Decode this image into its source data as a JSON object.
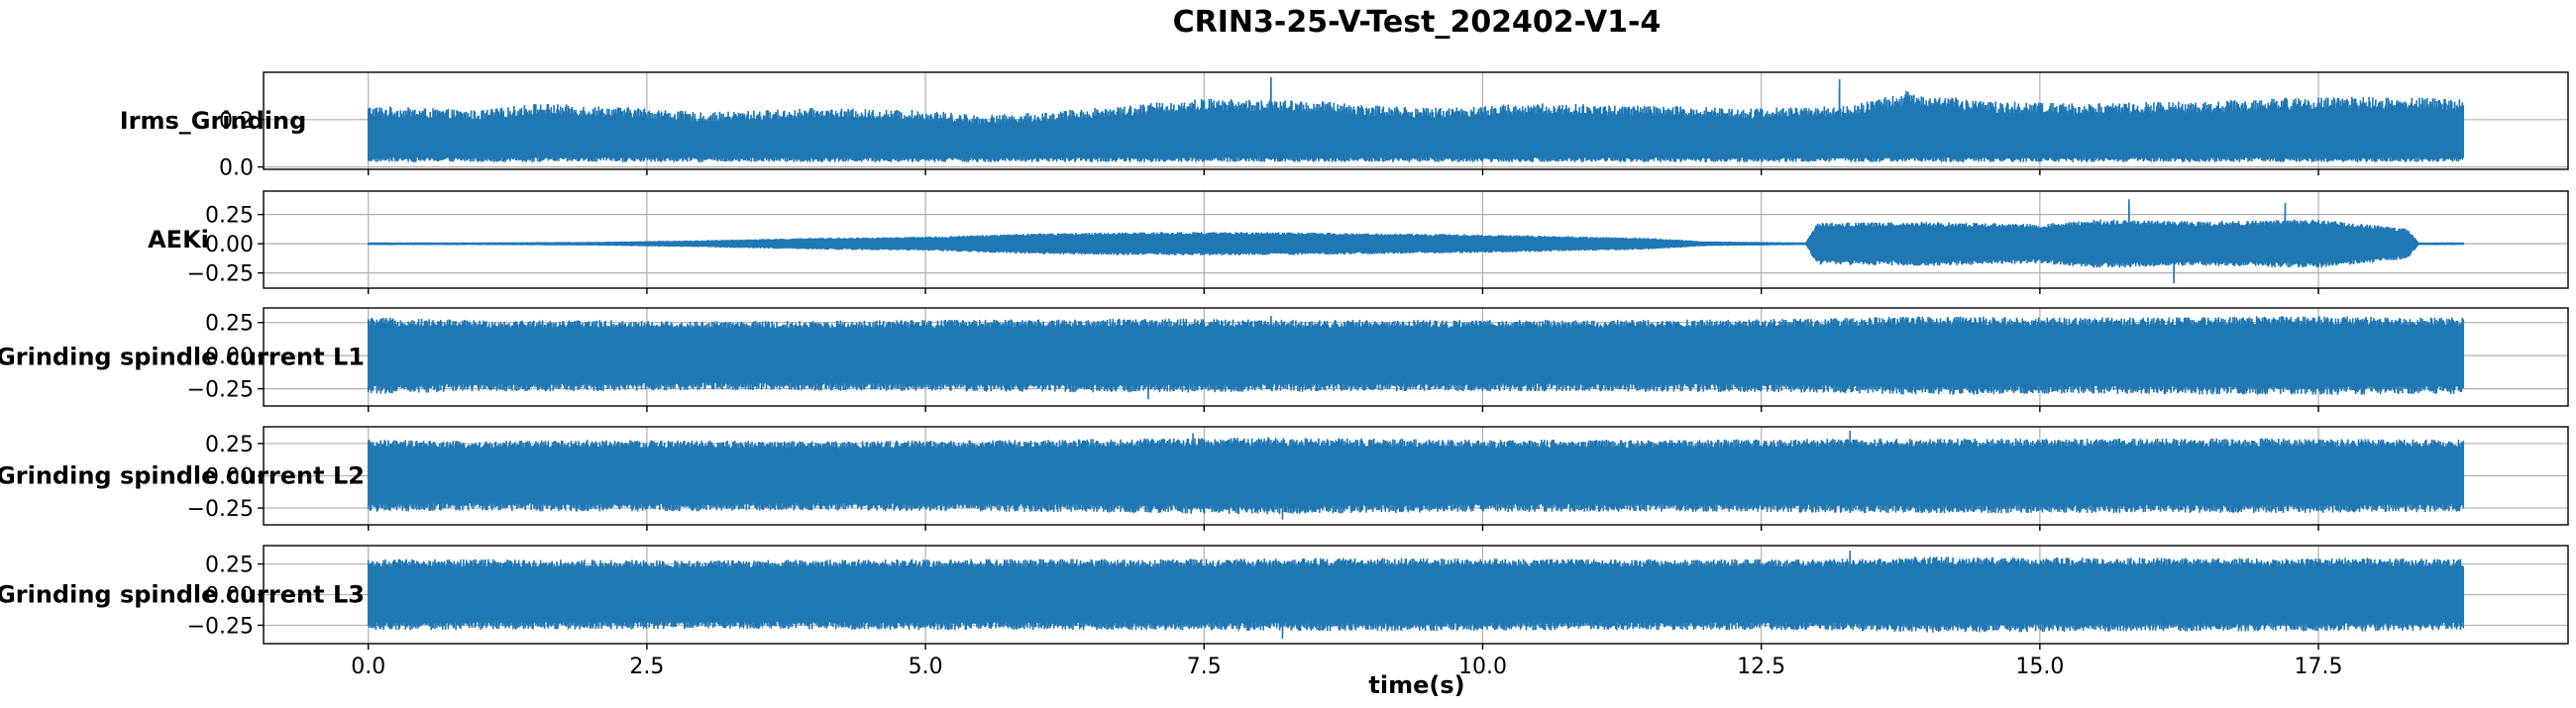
{
  "chart_data": {
    "title": "CRIN3-25-V-Test_202402-V1-4",
    "type": "line",
    "xlabel": "time(s)",
    "xlim": [
      -0.94,
      19.74
    ],
    "x_ticks": [
      "0.0",
      "2.5",
      "5.0",
      "7.5",
      "10.0",
      "12.5",
      "15.0",
      "17.5"
    ],
    "x_tick_values": [
      0,
      2.5,
      5,
      7.5,
      10,
      12.5,
      15,
      17.5
    ],
    "duration": 18.8,
    "color": "#1f77b4",
    "grid": true,
    "subplots": [
      {
        "ylabel": "Irms_Grinding",
        "ylim": [
          -0.01,
          0.4
        ],
        "y_ticks": [
          "0.0",
          "0.2"
        ],
        "y_tick_values": [
          0,
          0.2
        ],
        "signal": "rectified",
        "envelope": [
          [
            0,
            0.26
          ],
          [
            1,
            0.24
          ],
          [
            1.5,
            0.27
          ],
          [
            2.5,
            0.25
          ],
          [
            3,
            0.23
          ],
          [
            4,
            0.25
          ],
          [
            5,
            0.24
          ],
          [
            5.5,
            0.22
          ],
          [
            6,
            0.23
          ],
          [
            7,
            0.27
          ],
          [
            7.5,
            0.29
          ],
          [
            8.5,
            0.28
          ],
          [
            9.5,
            0.25
          ],
          [
            10.5,
            0.27
          ],
          [
            11.5,
            0.26
          ],
          [
            12.5,
            0.25
          ],
          [
            13.3,
            0.26
          ],
          [
            13.8,
            0.32
          ],
          [
            14.5,
            0.28
          ],
          [
            15.5,
            0.27
          ],
          [
            16.5,
            0.28
          ],
          [
            17.5,
            0.3
          ],
          [
            18.8,
            0.29
          ]
        ],
        "spikes": [
          [
            8.1,
            0.38
          ],
          [
            13.2,
            0.37
          ]
        ]
      },
      {
        "ylabel": "AEKi",
        "ylim": [
          -0.38,
          0.45
        ],
        "y_ticks": [
          "0.25",
          "0.00",
          "−0.25"
        ],
        "y_tick_values": [
          0.25,
          0,
          -0.25
        ],
        "signal": "symmetric",
        "envelope": [
          [
            0,
            0.01
          ],
          [
            1,
            0.01
          ],
          [
            2,
            0.015
          ],
          [
            3,
            0.03
          ],
          [
            4,
            0.05
          ],
          [
            5,
            0.06
          ],
          [
            6,
            0.09
          ],
          [
            7,
            0.1
          ],
          [
            8,
            0.1
          ],
          [
            9,
            0.09
          ],
          [
            10,
            0.08
          ],
          [
            11.5,
            0.05
          ],
          [
            12,
            0.02
          ],
          [
            12.9,
            0.01
          ],
          [
            13.0,
            0.18
          ],
          [
            14,
            0.19
          ],
          [
            15,
            0.17
          ],
          [
            15.5,
            0.21
          ],
          [
            16.5,
            0.19
          ],
          [
            17.5,
            0.21
          ],
          [
            18.3,
            0.13
          ],
          [
            18.4,
            0.01
          ],
          [
            18.8,
            0.01
          ]
        ],
        "spikes": [
          [
            15.8,
            0.38
          ],
          [
            17.2,
            0.35
          ],
          [
            16.2,
            -0.34
          ]
        ]
      },
      {
        "ylabel": "Grinding spindle current L1",
        "ylim": [
          -0.38,
          0.36
        ],
        "y_ticks": [
          "0.25",
          "0.00",
          "−0.25"
        ],
        "y_tick_values": [
          0.25,
          0,
          -0.25
        ],
        "signal": "symmetric",
        "envelope": [
          [
            0,
            0.29
          ],
          [
            1,
            0.27
          ],
          [
            2,
            0.27
          ],
          [
            3,
            0.26
          ],
          [
            5,
            0.27
          ],
          [
            7,
            0.28
          ],
          [
            9,
            0.27
          ],
          [
            11,
            0.27
          ],
          [
            13,
            0.28
          ],
          [
            14,
            0.3
          ],
          [
            15,
            0.29
          ],
          [
            16,
            0.29
          ],
          [
            17,
            0.3
          ],
          [
            18.8,
            0.29
          ]
        ],
        "spikes": [
          [
            8.1,
            0.3
          ],
          [
            7.0,
            -0.33
          ]
        ]
      },
      {
        "ylabel": "Grinding spindle current L2",
        "ylim": [
          -0.38,
          0.38
        ],
        "y_ticks": [
          "0.25",
          "0.00",
          "−0.25"
        ],
        "y_tick_values": [
          0.25,
          0,
          -0.25
        ],
        "signal": "symmetric",
        "envelope": [
          [
            0,
            0.28
          ],
          [
            1,
            0.27
          ],
          [
            2,
            0.28
          ],
          [
            4,
            0.27
          ],
          [
            6,
            0.28
          ],
          [
            8,
            0.3
          ],
          [
            10,
            0.28
          ],
          [
            12,
            0.28
          ],
          [
            13.5,
            0.29
          ],
          [
            15,
            0.29
          ],
          [
            17,
            0.29
          ],
          [
            18.8,
            0.28
          ]
        ],
        "spikes": [
          [
            7.4,
            0.33
          ],
          [
            13.3,
            0.35
          ],
          [
            8.2,
            -0.34
          ]
        ]
      },
      {
        "ylabel": "Grinding spindle current L3",
        "ylim": [
          -0.4,
          0.4
        ],
        "y_ticks": [
          "0.25",
          "0.00",
          "−0.25"
        ],
        "y_tick_values": [
          0.25,
          0,
          -0.25
        ],
        "signal": "symmetric",
        "envelope": [
          [
            0,
            0.29
          ],
          [
            1,
            0.29
          ],
          [
            3,
            0.28
          ],
          [
            5,
            0.29
          ],
          [
            7,
            0.29
          ],
          [
            9,
            0.3
          ],
          [
            11,
            0.29
          ],
          [
            13,
            0.29
          ],
          [
            14,
            0.31
          ],
          [
            16,
            0.3
          ],
          [
            18,
            0.3
          ],
          [
            18.8,
            0.29
          ]
        ],
        "spikes": [
          [
            13.3,
            0.36
          ],
          [
            8.2,
            -0.36
          ]
        ]
      }
    ]
  }
}
